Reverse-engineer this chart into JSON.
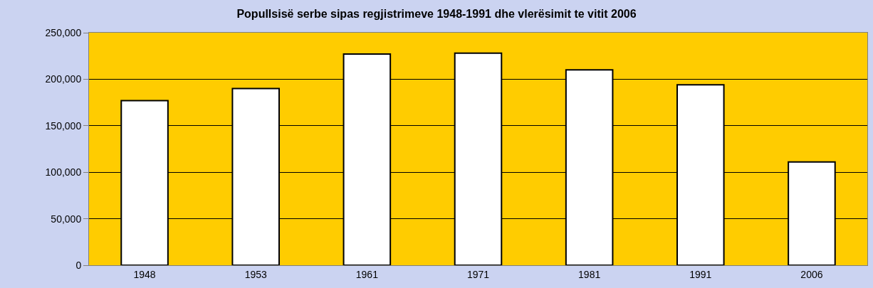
{
  "chart_data": {
    "type": "bar",
    "title": "Popullsisë serbe sipas regjistrimeve 1948-1991 dhe vlerësimit te vitit 2006",
    "categories": [
      "1948",
      "1953",
      "1961",
      "1971",
      "1981",
      "1991",
      "2006"
    ],
    "values": [
      177000,
      190000,
      227000,
      228000,
      210000,
      194000,
      111000
    ],
    "color": "#ffffff",
    "ylim": [
      0,
      250000
    ],
    "yticks": [
      0,
      {
        "value": 50000,
        "label": "50,000"
      },
      {
        "value": 100000,
        "label": "100,000"
      },
      {
        "value": 150000,
        "label": "150,000"
      },
      {
        "value": 200000,
        "label": "200,000"
      },
      {
        "value": 250000,
        "label": "250,000"
      }
    ],
    "grid": "y"
  }
}
